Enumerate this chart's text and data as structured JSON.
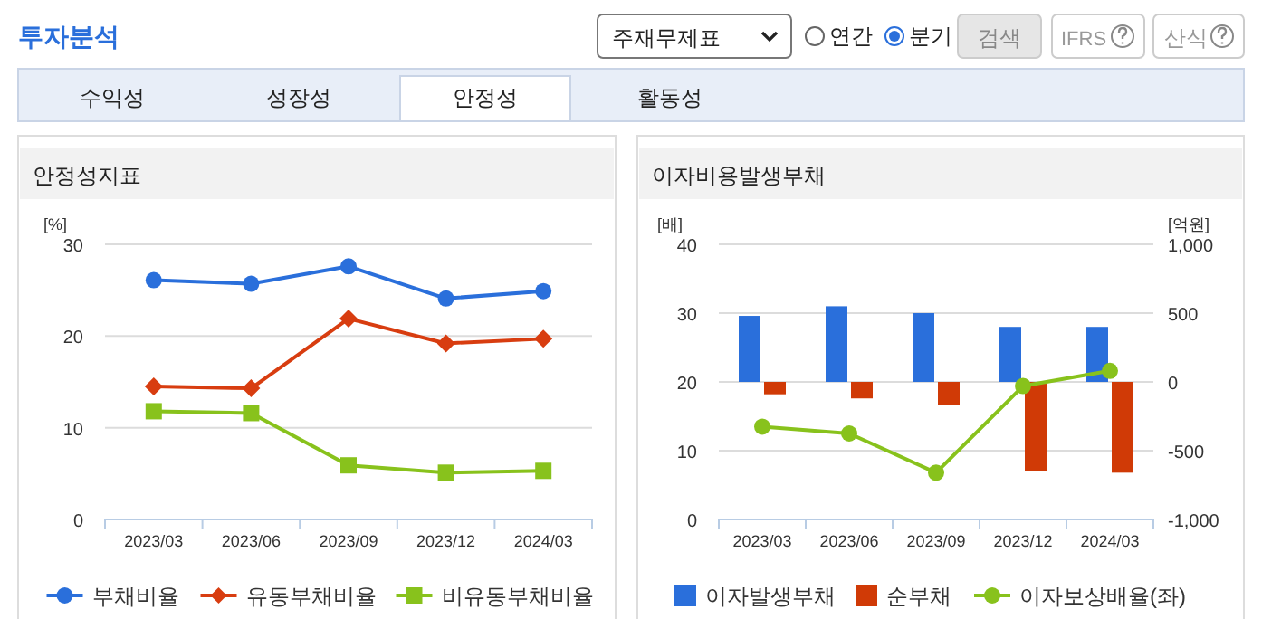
{
  "chart_data": [
    {
      "type": "other",
      "title": "투자분석",
      "annotations": [
        "주재무제표",
        "연간",
        "분기",
        "검색",
        "IFRS",
        "산식",
        "수익성",
        "성장성",
        "안정성",
        "활동성"
      ]
    },
    {
      "type": "line",
      "title": "안정성지표",
      "ylabel": "[%]",
      "categories": [
        "2023/03",
        "2023/06",
        "2023/09",
        "2023/12",
        "2024/03"
      ],
      "series": [
        {
          "name": "부채비율",
          "color": "#2a6fdb",
          "marker": "circle",
          "values": [
            26.1,
            25.7,
            27.6,
            24.1,
            24.9
          ]
        },
        {
          "name": "유동부채비율",
          "color": "#d83d10",
          "marker": "diamond",
          "values": [
            14.5,
            14.3,
            21.9,
            19.2,
            19.7
          ]
        },
        {
          "name": "비유동부채비율",
          "color": "#88c21c",
          "marker": "square",
          "values": [
            11.8,
            11.6,
            5.9,
            5.1,
            5.3
          ]
        }
      ],
      "ylim": [
        0,
        30
      ],
      "yticks": [
        0,
        10,
        20,
        30
      ],
      "grid": "y",
      "legend": "bottom"
    },
    {
      "type": "bar",
      "title": "이자비용발생부채",
      "ylabel": "[배]",
      "y2label": "[억원]",
      "categories": [
        "2023/03",
        "2023/06",
        "2023/09",
        "2023/12",
        "2024/03"
      ],
      "series": [
        {
          "name": "이자발생부채",
          "color": "#2a6fdb",
          "axis": "y2",
          "values": [
            480,
            550,
            500,
            400,
            400
          ]
        },
        {
          "name": "순부채",
          "color": "#d03a06",
          "axis": "y2",
          "values": [
            -90,
            -120,
            -170,
            -650,
            -660
          ]
        },
        {
          "name": "이자보상배율(좌)",
          "color": "#88c21c",
          "type": "line",
          "marker": "circle",
          "axis": "y",
          "values": [
            13.5,
            12.5,
            6.8,
            19.4,
            21.6
          ]
        }
      ],
      "ylim": [
        0,
        40
      ],
      "yticks": [
        0,
        10,
        20,
        30,
        40
      ],
      "y2lim": [
        -1000,
        1000
      ],
      "y2ticks": [
        {
          "value": -1000,
          "label": "-1,000"
        },
        -500,
        0,
        500,
        {
          "value": 1000,
          "label": "1,000"
        }
      ],
      "grid": "y",
      "legend": "bottom"
    }
  ]
}
